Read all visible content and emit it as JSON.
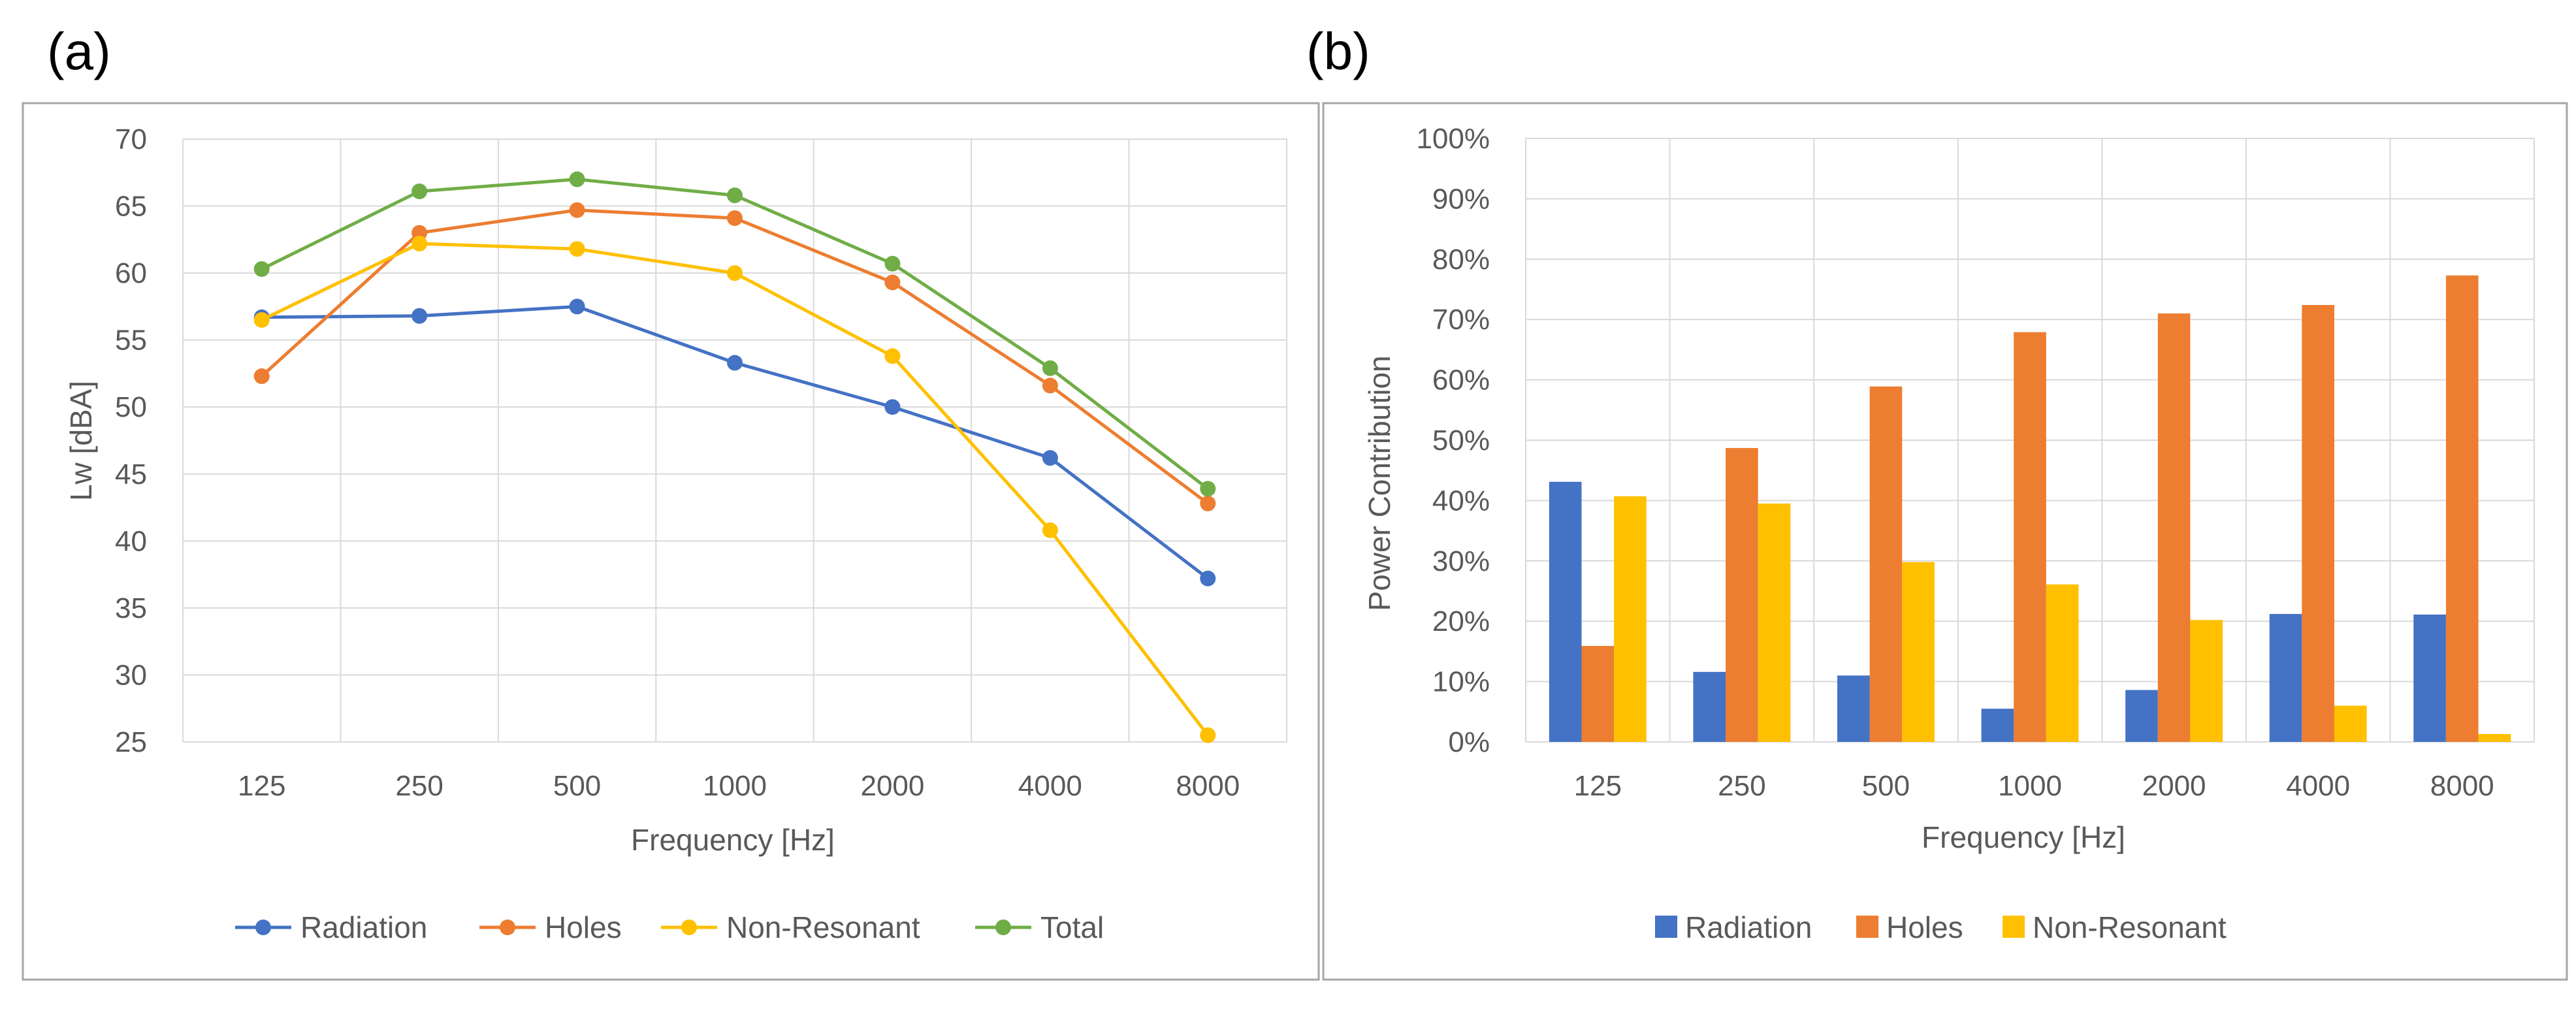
{
  "figure": {
    "colors": {
      "radiation": "#4472C4",
      "holes": "#ED7D31",
      "non_resonant": "#FFC000",
      "total": "#70AD47",
      "grid": "#D9D9D9",
      "frame": "#A6A6A6",
      "text": "#595959"
    }
  },
  "chart_data": [
    {
      "panel_label": "(a)",
      "type": "line",
      "categories": [
        "125",
        "250",
        "500",
        "1000",
        "2000",
        "4000",
        "8000"
      ],
      "series": [
        {
          "name": "Radiation",
          "color": "#4472C4",
          "values": [
            56.7,
            56.8,
            57.5,
            53.3,
            50.0,
            46.2,
            37.2
          ]
        },
        {
          "name": "Holes",
          "color": "#ED7D31",
          "values": [
            52.3,
            63.0,
            64.7,
            64.1,
            59.3,
            51.6,
            42.8
          ]
        },
        {
          "name": "Non-Resonant",
          "color": "#FFC000",
          "values": [
            56.5,
            62.2,
            61.8,
            60.0,
            53.8,
            40.8,
            25.5
          ]
        },
        {
          "name": "Total",
          "color": "#70AD47",
          "values": [
            60.3,
            66.1,
            67.0,
            65.8,
            60.7,
            52.9,
            43.9
          ]
        }
      ],
      "title": "",
      "xlabel": "Frequency [Hz]",
      "ylabel": "Lw [dBA]",
      "ylim": [
        25,
        70
      ],
      "yticks": [
        "25",
        "30",
        "35",
        "40",
        "45",
        "50",
        "55",
        "60",
        "65",
        "70"
      ],
      "grid": true,
      "legend_position": "bottom"
    },
    {
      "panel_label": "(b)",
      "type": "bar",
      "categories": [
        "125",
        "250",
        "500",
        "1000",
        "2000",
        "4000",
        "8000"
      ],
      "series": [
        {
          "name": "Radiation",
          "color": "#4472C4",
          "values": [
            43.1,
            11.6,
            11.0,
            5.5,
            8.6,
            21.2,
            21.1
          ]
        },
        {
          "name": "Holes",
          "color": "#ED7D31",
          "values": [
            15.9,
            48.7,
            58.9,
            67.9,
            71.0,
            72.4,
            77.3
          ]
        },
        {
          "name": "Non-Resonant",
          "color": "#FFC000",
          "values": [
            40.7,
            39.5,
            29.8,
            26.1,
            20.2,
            6.0,
            1.3
          ]
        }
      ],
      "title": "",
      "xlabel": "Frequency [Hz]",
      "ylabel": "Power Contribution",
      "ylim": [
        0,
        100
      ],
      "yticks": [
        "0%",
        "10%",
        "20%",
        "30%",
        "40%",
        "50%",
        "60%",
        "70%",
        "80%",
        "90%",
        "100%"
      ],
      "grid": true,
      "legend_position": "bottom"
    }
  ]
}
